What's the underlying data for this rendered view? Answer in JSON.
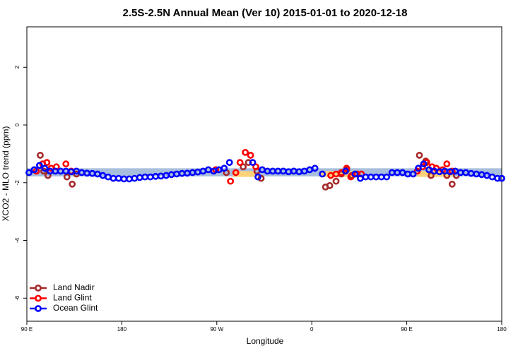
{
  "chart_data": {
    "type": "scatter",
    "title": "2.5S-2.5N Annual Mean (Ver 10)   2015-01-01 to 2020-12-18",
    "x_label": "Longitude",
    "y_label": "XCO2 - MLO trend (ppm)",
    "xlim": [
      90,
      540
    ],
    "xticks": [
      {
        "value": 90,
        "label": "90 E"
      },
      {
        "value": 180,
        "label": "180"
      },
      {
        "value": 270,
        "label": "90 W"
      },
      {
        "value": 360,
        "label": "0"
      },
      {
        "value": 450,
        "label": "90 E"
      },
      {
        "value": 540,
        "label": "180"
      }
    ],
    "ylim": [
      -6.8,
      3.4
    ],
    "yticks": [
      -6,
      -4,
      -2,
      0,
      2
    ],
    "legend": "bottom-left",
    "bands": [
      {
        "xlim": [
          90,
          540
        ],
        "ylim": [
          -1.78,
          -1.5
        ],
        "color": "#a7bedd"
      },
      {
        "xlim": [
          285,
          306
        ],
        "ylim": [
          -1.8,
          -1.6
        ],
        "color": "#ffd27a"
      },
      {
        "xlim": [
          369,
          406
        ],
        "ylim": [
          -1.8,
          -1.6
        ],
        "color": "#ffd27a"
      },
      {
        "xlim": [
          460,
          493
        ],
        "ylim": [
          -1.8,
          -1.6
        ],
        "color": "#ffd27a"
      }
    ],
    "series": [
      {
        "name": "Land Nadir",
        "color": "#a52a2a",
        "x": [
          102.7,
          106,
          110,
          128,
          133,
          137,
          279,
          295,
          300,
          308,
          312,
          373,
          377,
          383,
          388,
          393,
          398,
          462,
          468,
          473,
          488,
          493,
          497
        ],
        "values": [
          -1.05,
          -1.6,
          -1.75,
          -1.8,
          -2.05,
          -1.7,
          -1.65,
          -1.45,
          -1.3,
          -1.6,
          -1.85,
          -2.15,
          -2.1,
          -1.95,
          -1.7,
          -1.55,
          -1.75,
          -1.05,
          -1.25,
          -1.75,
          -1.75,
          -2.05,
          -1.75
        ]
      },
      {
        "name": "Land Glint",
        "color": "#ff0000",
        "x": [
          99,
          105,
          109,
          113,
          118,
          127,
          132,
          269,
          283,
          288,
          292,
          297,
          302,
          307,
          378,
          383,
          388,
          393,
          397,
          403,
          407,
          460,
          465,
          469,
          474,
          478,
          484,
          488,
          493
        ],
        "values": [
          -1.6,
          -1.35,
          -1.3,
          -1.5,
          -1.45,
          -1.35,
          -1.6,
          -1.55,
          -1.95,
          -1.65,
          -1.3,
          -0.95,
          -1.05,
          -1.45,
          -1.75,
          -1.7,
          -1.65,
          -1.5,
          -1.8,
          -1.7,
          -1.7,
          -1.6,
          -1.45,
          -1.3,
          -1.45,
          -1.5,
          -1.55,
          -1.35,
          -1.6
        ]
      },
      {
        "name": "Ocean Glint",
        "color": "#0000ff",
        "x": [
          92,
          97,
          102,
          107,
          112,
          117,
          122,
          127,
          132,
          137,
          142,
          147,
          152,
          157,
          162,
          167,
          172,
          177,
          182,
          187,
          192,
          197,
          202,
          207,
          212,
          217,
          222,
          227,
          232,
          237,
          242,
          247,
          252,
          257,
          262,
          267,
          272,
          277,
          282,
          304,
          309,
          313,
          318,
          323,
          328,
          333,
          338,
          343,
          348,
          353,
          358,
          363,
          370,
          392,
          401,
          406,
          411,
          416,
          421,
          426,
          431,
          436,
          441,
          446,
          451,
          456,
          461,
          466,
          471,
          476,
          481,
          486,
          491,
          496,
          501,
          506,
          511,
          516,
          521,
          526,
          531,
          536,
          540
        ],
        "values": [
          -1.65,
          -1.55,
          -1.4,
          -1.5,
          -1.6,
          -1.6,
          -1.6,
          -1.6,
          -1.62,
          -1.6,
          -1.65,
          -1.67,
          -1.68,
          -1.7,
          -1.75,
          -1.8,
          -1.85,
          -1.85,
          -1.87,
          -1.87,
          -1.85,
          -1.82,
          -1.8,
          -1.8,
          -1.78,
          -1.77,
          -1.75,
          -1.72,
          -1.7,
          -1.68,
          -1.67,
          -1.65,
          -1.63,
          -1.6,
          -1.55,
          -1.6,
          -1.55,
          -1.5,
          -1.3,
          -1.3,
          -1.8,
          -1.55,
          -1.6,
          -1.6,
          -1.6,
          -1.6,
          -1.62,
          -1.6,
          -1.62,
          -1.6,
          -1.55,
          -1.5,
          -1.7,
          -1.6,
          -1.7,
          -1.85,
          -1.8,
          -1.8,
          -1.8,
          -1.8,
          -1.8,
          -1.65,
          -1.65,
          -1.65,
          -1.7,
          -1.7,
          -1.5,
          -1.35,
          -1.55,
          -1.6,
          -1.62,
          -1.6,
          -1.62,
          -1.6,
          -1.65,
          -1.65,
          -1.68,
          -1.7,
          -1.72,
          -1.75,
          -1.8,
          -1.85,
          -1.85
        ]
      }
    ]
  }
}
